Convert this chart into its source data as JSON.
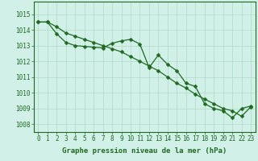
{
  "line1_y": [
    1014.5,
    1014.5,
    1014.2,
    1013.8,
    1013.6,
    1013.4,
    1013.2,
    1013.0,
    1012.8,
    1012.6,
    1012.3,
    1012.0,
    1011.7,
    1011.4,
    1011.0,
    1010.6,
    1010.3,
    1009.9,
    1009.6,
    1009.3,
    1009.0,
    1008.85,
    1008.5,
    1009.1
  ],
  "line2_y": [
    1014.5,
    1014.5,
    1013.75,
    1013.2,
    1013.0,
    1012.95,
    1012.9,
    1012.85,
    1013.15,
    1013.3,
    1013.4,
    1013.1,
    1011.6,
    1012.4,
    1011.8,
    1011.4,
    1010.6,
    1010.4,
    1009.3,
    1009.0,
    1008.85,
    1008.4,
    1009.0,
    1009.15
  ],
  "line_color": "#1e6b1e",
  "bg_color": "#d0f0e8",
  "grid_color": "#b0d8c8",
  "ylim_min": 1007.5,
  "ylim_max": 1015.8,
  "yticks": [
    1008,
    1009,
    1010,
    1011,
    1012,
    1013,
    1014,
    1015
  ],
  "xlim_min": -0.5,
  "xlim_max": 23.5,
  "xticks": [
    0,
    1,
    2,
    3,
    4,
    5,
    6,
    7,
    8,
    9,
    10,
    11,
    12,
    13,
    14,
    15,
    16,
    17,
    18,
    19,
    20,
    21,
    22,
    23
  ],
  "xlabel": "Graphe pression niveau de la mer (hPa)",
  "xlabel_fontsize": 6.5,
  "tick_fontsize": 5.5,
  "marker_size": 2.5,
  "linewidth": 0.9
}
